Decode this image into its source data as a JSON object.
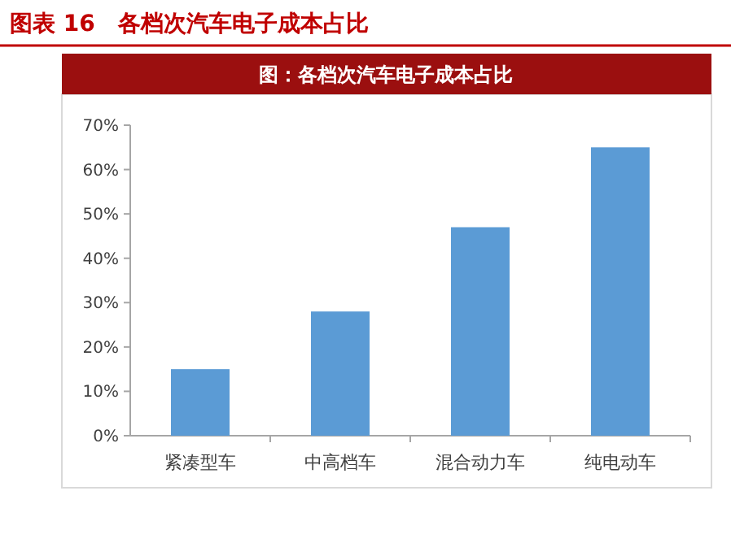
{
  "chart_data": {
    "type": "bar",
    "title": "图表 16　各档次汽车电子成本占比",
    "subtitle": "图：各档次汽车电子成本占比",
    "categories": [
      "紧凑型车",
      "中高档车",
      "混合动力车",
      "纯电动车"
    ],
    "values": [
      15,
      28,
      47,
      65
    ],
    "color": "#5b9bd5",
    "ylim": [
      0,
      70
    ],
    "yticks": [
      {
        "value": 0,
        "label": "0%"
      },
      {
        "value": 10,
        "label": "10%"
      },
      {
        "value": 20,
        "label": "20%"
      },
      {
        "value": 30,
        "label": "30%"
      },
      {
        "value": 40,
        "label": "40%"
      },
      {
        "value": 50,
        "label": "50%"
      },
      {
        "value": 60,
        "label": "60%"
      },
      {
        "value": 70,
        "label": "70%"
      }
    ]
  }
}
